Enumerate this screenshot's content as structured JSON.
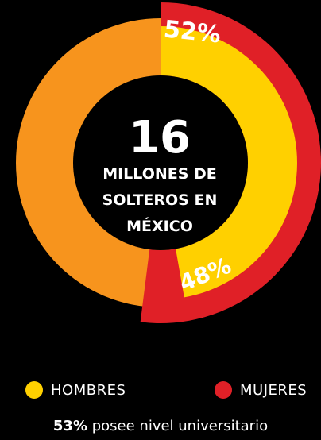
{
  "chart_data": {
    "type": "pie",
    "center": {
      "number": "16",
      "line1": "MILLONES DE",
      "line2": "SOLTEROS EN",
      "line3": "MÉXICO"
    },
    "slices": [
      {
        "name": "HOMBRES",
        "value": 48,
        "label": "48%",
        "color": "#ffd000"
      },
      {
        "name": "MUJERES",
        "value": 52,
        "label": "52%",
        "color": "#e02027"
      }
    ],
    "base_ring_color": "#f7941d"
  },
  "legend": {
    "hombres": "HOMBRES",
    "mujeres": "MUJERES",
    "hombres_color": "#ffd000",
    "mujeres_color": "#e02027"
  },
  "footnote": {
    "pct": "53%",
    "text": " posee nivel universitario"
  }
}
